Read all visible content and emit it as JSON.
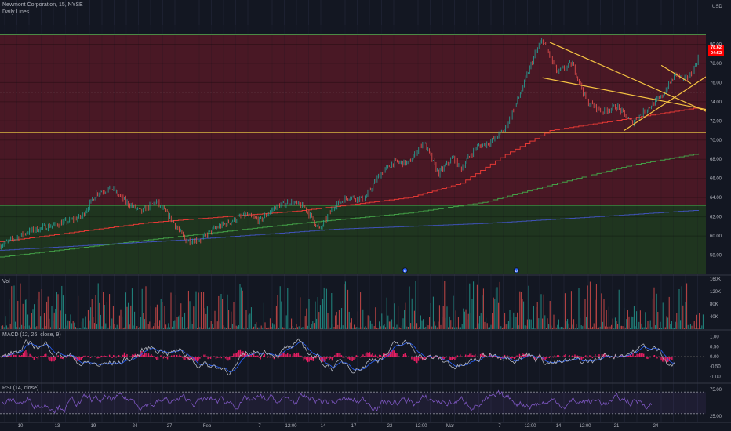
{
  "header": {
    "symbol": "Newmont Corporation, 15, NYSE",
    "indicator": "Daily Lines",
    "currency": "USD"
  },
  "price_tag": {
    "price": "78.62",
    "timer": "04:52"
  },
  "panes": {
    "volume": {
      "label": "Vol"
    },
    "macd": {
      "label": "MACD (12, 26, close, 9)"
    },
    "rsi": {
      "label": "RSI (14, close)"
    }
  },
  "events": [
    "E",
    "D"
  ],
  "time_axis": [
    "10",
    "13",
    "19",
    "24",
    "27",
    "Feb",
    "7",
    "12:00",
    "14",
    "17",
    "22",
    "12:00",
    "Mar",
    "7",
    "12:00",
    "14",
    "12:00",
    "21",
    "24"
  ],
  "chart_data": [
    {
      "type": "line",
      "title": "Newmont Corporation, 15, NYSE",
      "ylabel": "USD",
      "ylim": [
        56,
        82
      ],
      "yticks": [
        58,
        60,
        62,
        64,
        66,
        68,
        70,
        72,
        74,
        76,
        78,
        80
      ],
      "zones": [
        {
          "name": "red-zone",
          "from": 63.2,
          "to": 81,
          "color": "#8b1a2a"
        },
        {
          "name": "green-zone",
          "from": 56,
          "to": 63.2,
          "color": "#2e5a1c"
        }
      ],
      "horizontal_lines": [
        {
          "value": 81.0,
          "color": "#4caf50"
        },
        {
          "value": 70.8,
          "color": "#f5d547"
        },
        {
          "value": 63.2,
          "color": "#4caf50"
        }
      ],
      "price_path": [
        [
          0,
          59.0
        ],
        [
          4,
          60.5
        ],
        [
          8,
          61.3
        ],
        [
          11,
          62.0
        ],
        [
          13,
          64.5
        ],
        [
          15,
          65.0
        ],
        [
          17,
          63.5
        ],
        [
          19,
          62.5
        ],
        [
          21,
          63.6
        ],
        [
          23,
          61.8
        ],
        [
          25,
          59.5
        ],
        [
          27,
          59.6
        ],
        [
          29,
          60.8
        ],
        [
          31,
          61.5
        ],
        [
          33,
          62.2
        ],
        [
          35,
          61.6
        ],
        [
          37,
          63.0
        ],
        [
          39,
          63.6
        ],
        [
          41,
          63.0
        ],
        [
          43,
          60.6
        ],
        [
          45,
          63.2
        ],
        [
          47,
          64.1
        ],
        [
          49,
          63.8
        ],
        [
          51,
          66.3
        ],
        [
          53,
          67.7
        ],
        [
          55,
          67.6
        ],
        [
          57,
          69.9
        ],
        [
          59,
          66.5
        ],
        [
          61,
          68.2
        ],
        [
          62,
          67.0
        ],
        [
          64,
          69.2
        ],
        [
          66,
          69.8
        ],
        [
          68,
          71.2
        ],
        [
          70,
          74.8
        ],
        [
          72,
          79.0
        ],
        [
          73,
          80.5
        ],
        [
          75,
          77.0
        ],
        [
          77,
          78.0
        ],
        [
          79,
          74.0
        ],
        [
          81,
          73.0
        ],
        [
          83,
          73.5
        ],
        [
          85,
          71.8
        ],
        [
          87,
          73.2
        ],
        [
          89,
          74.5
        ],
        [
          91,
          77.0
        ],
        [
          92,
          76.2
        ],
        [
          93,
          76.8
        ],
        [
          94,
          78.6
        ]
      ],
      "trend_lines": [
        {
          "name": "daily-line-red",
          "color": "#e53935",
          "points": [
            [
              0,
              59.4
            ],
            [
              20,
              61.4
            ],
            [
              40,
              62.6
            ],
            [
              55,
              64.0
            ],
            [
              62,
              65.5
            ],
            [
              68,
              68.5
            ],
            [
              74,
              71.0
            ],
            [
              85,
              72.3
            ],
            [
              94,
              73.4
            ]
          ]
        },
        {
          "name": "daily-line-green",
          "color": "#43a047",
          "points": [
            [
              0,
              57.8
            ],
            [
              20,
              59.6
            ],
            [
              40,
              61.3
            ],
            [
              55,
              62.4
            ],
            [
              65,
              63.5
            ],
            [
              75,
              65.5
            ],
            [
              85,
              67.4
            ],
            [
              94,
              68.6
            ]
          ]
        },
        {
          "name": "daily-line-blue",
          "color": "#3f51b5",
          "points": [
            [
              0,
              58.5
            ],
            [
              25,
              59.6
            ],
            [
              45,
              60.7
            ],
            [
              65,
              61.3
            ],
            [
              80,
              62.0
            ],
            [
              94,
              62.7
            ]
          ]
        }
      ],
      "channel": {
        "color": "#f5c242",
        "lines": [
          [
            [
              74,
              80.2
            ],
            [
              95,
              73.0
            ]
          ],
          [
            [
              73,
              76.5
            ],
            [
              95,
              73.2
            ]
          ],
          [
            [
              84,
              71.0
            ],
            [
              95,
              76.6
            ]
          ],
          [
            [
              89,
              77.8
            ],
            [
              93,
              75.9
            ]
          ]
        ]
      },
      "grid": true
    },
    {
      "type": "bar",
      "title": "Vol",
      "ylim": [
        0,
        170000
      ],
      "yticks_labels": [
        "40K",
        "80K",
        "120K",
        "160K"
      ],
      "yticks": [
        40000,
        80000,
        120000,
        160000
      ],
      "up_color": "#26a69a",
      "down_color": "#ef5350"
    },
    {
      "type": "line",
      "title": "MACD (12, 26, close, 9)",
      "ylim": [
        -1.3,
        1.3
      ],
      "yticks": [
        -1.0,
        -0.5,
        0.0,
        0.5,
        1.0
      ],
      "yticks_labels": [
        "-1.00",
        "-0.50",
        "0.00",
        "0.50",
        "1.00"
      ],
      "series": [
        {
          "name": "MACD",
          "color": "#b2b5be"
        },
        {
          "name": "Signal",
          "color": "#2962ff"
        },
        {
          "name": "Histogram",
          "color": "#e91e63"
        }
      ]
    },
    {
      "type": "line",
      "title": "RSI (14, close)",
      "ylim": [
        15,
        85
      ],
      "yticks": [
        25,
        75
      ],
      "yticks_labels": [
        "25.00",
        "75.00"
      ],
      "band": [
        30,
        70
      ],
      "series": [
        {
          "name": "RSI",
          "color": "#7e57c2"
        }
      ]
    }
  ],
  "colors": {
    "background": "#131722",
    "axis_text": "#b2b5be",
    "grid": "#2a2e39"
  }
}
